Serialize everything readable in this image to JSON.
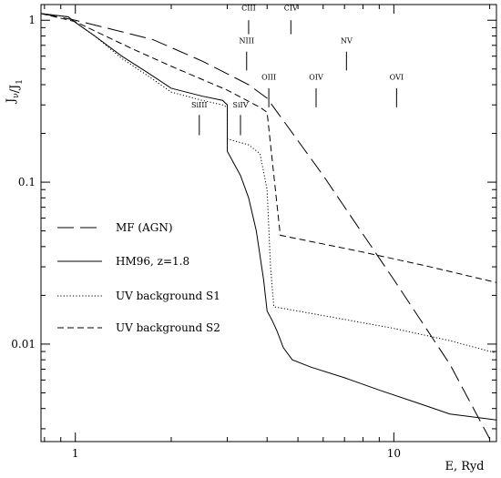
{
  "chart_data": {
    "type": "line",
    "title": "",
    "xlabel": "E, Ryd",
    "ylabel": "J_ν/J_1",
    "xscale": "log",
    "yscale": "log",
    "xlim": [
      0.78,
      21
    ],
    "ylim": [
      0.0025,
      1.25
    ],
    "x_ticks": [
      {
        "value": 1,
        "label": "1"
      },
      {
        "value": 10,
        "label": "10"
      }
    ],
    "y_ticks": [
      {
        "value": 1,
        "label": "1"
      },
      {
        "value": 0.1,
        "label": "0.1"
      },
      {
        "value": 0.01,
        "label": "0.01"
      }
    ],
    "grid": false,
    "legend_position": "lower-left",
    "series": [
      {
        "name": "MF (AGN)",
        "dash": "long-dash",
        "points": [
          [
            0.78,
            1.1
          ],
          [
            1.0,
            1.0
          ],
          [
            1.3,
            0.88
          ],
          [
            1.75,
            0.76
          ],
          [
            2.5,
            0.56
          ],
          [
            3.5,
            0.4
          ],
          [
            4.0,
            0.33
          ],
          [
            6.0,
            0.11
          ],
          [
            10.0,
            0.025
          ],
          [
            15.0,
            0.0075
          ],
          [
            20.0,
            0.0026
          ]
        ]
      },
      {
        "name": "HM96, z=1.8",
        "dash": "solid",
        "points": [
          [
            0.78,
            1.1
          ],
          [
            0.95,
            1.05
          ],
          [
            1.0,
            0.97
          ],
          [
            1.15,
            0.8
          ],
          [
            1.4,
            0.6
          ],
          [
            1.7,
            0.47
          ],
          [
            2.0,
            0.38
          ],
          [
            2.5,
            0.34
          ],
          [
            2.9,
            0.32
          ],
          [
            3.0,
            0.3
          ],
          [
            3.0,
            0.155
          ],
          [
            3.3,
            0.11
          ],
          [
            3.5,
            0.08
          ],
          [
            3.7,
            0.05
          ],
          [
            3.9,
            0.025
          ],
          [
            4.0,
            0.016
          ],
          [
            4.15,
            0.014
          ],
          [
            4.3,
            0.012
          ],
          [
            4.5,
            0.0095
          ],
          [
            4.8,
            0.008
          ],
          [
            5.5,
            0.0072
          ],
          [
            7.0,
            0.0062
          ],
          [
            9.0,
            0.0052
          ],
          [
            12.0,
            0.0043
          ],
          [
            15.0,
            0.0037
          ],
          [
            21.0,
            0.0034
          ]
        ]
      },
      {
        "name": "UV background S1",
        "dash": "dotted",
        "points": [
          [
            0.78,
            1.1
          ],
          [
            0.95,
            1.05
          ],
          [
            1.0,
            0.97
          ],
          [
            1.15,
            0.8
          ],
          [
            1.4,
            0.58
          ],
          [
            1.7,
            0.45
          ],
          [
            2.0,
            0.36
          ],
          [
            2.5,
            0.32
          ],
          [
            2.9,
            0.3
          ],
          [
            3.0,
            0.29
          ],
          [
            3.0,
            0.185
          ],
          [
            3.5,
            0.17
          ],
          [
            3.8,
            0.15
          ],
          [
            4.0,
            0.09
          ],
          [
            4.1,
            0.03
          ],
          [
            4.2,
            0.017
          ],
          [
            6.0,
            0.015
          ],
          [
            10.0,
            0.0125
          ],
          [
            15.0,
            0.0105
          ],
          [
            21.0,
            0.0088
          ]
        ]
      },
      {
        "name": "UV background S2",
        "dash": "short-dash",
        "points": [
          [
            0.78,
            1.1
          ],
          [
            1.0,
            0.98
          ],
          [
            1.5,
            0.67
          ],
          [
            2.0,
            0.52
          ],
          [
            3.0,
            0.37
          ],
          [
            3.8,
            0.29
          ],
          [
            4.0,
            0.27
          ],
          [
            4.4,
            0.047
          ],
          [
            8.0,
            0.037
          ],
          [
            13.0,
            0.03
          ],
          [
            21.0,
            0.024
          ]
        ]
      }
    ],
    "annotations": [
      {
        "label": "CIII",
        "x": 3.5,
        "y_text": 1.15,
        "line_from": 1.0,
        "line_to": 0.82
      },
      {
        "label": "CIV",
        "x": 4.75,
        "y_text": 1.15,
        "line_from": 1.0,
        "line_to": 0.82
      },
      {
        "label": "NIII",
        "x": 3.45,
        "y_text": 0.72,
        "line_from": 0.64,
        "line_to": 0.49
      },
      {
        "label": "NV",
        "x": 7.1,
        "y_text": 0.72,
        "line_from": 0.64,
        "line_to": 0.49
      },
      {
        "label": "OIII",
        "x": 4.05,
        "y_text": 0.43,
        "line_from": 0.38,
        "line_to": 0.29
      },
      {
        "label": "OIV",
        "x": 5.7,
        "y_text": 0.43,
        "line_from": 0.38,
        "line_to": 0.29
      },
      {
        "label": "OVI",
        "x": 10.2,
        "y_text": 0.43,
        "line_from": 0.38,
        "line_to": 0.29
      },
      {
        "label": "SiIII",
        "x": 2.45,
        "y_text": 0.29,
        "line_from": 0.26,
        "line_to": 0.195
      },
      {
        "label": "SiIV",
        "x": 3.3,
        "y_text": 0.29,
        "line_from": 0.26,
        "line_to": 0.195
      }
    ]
  }
}
